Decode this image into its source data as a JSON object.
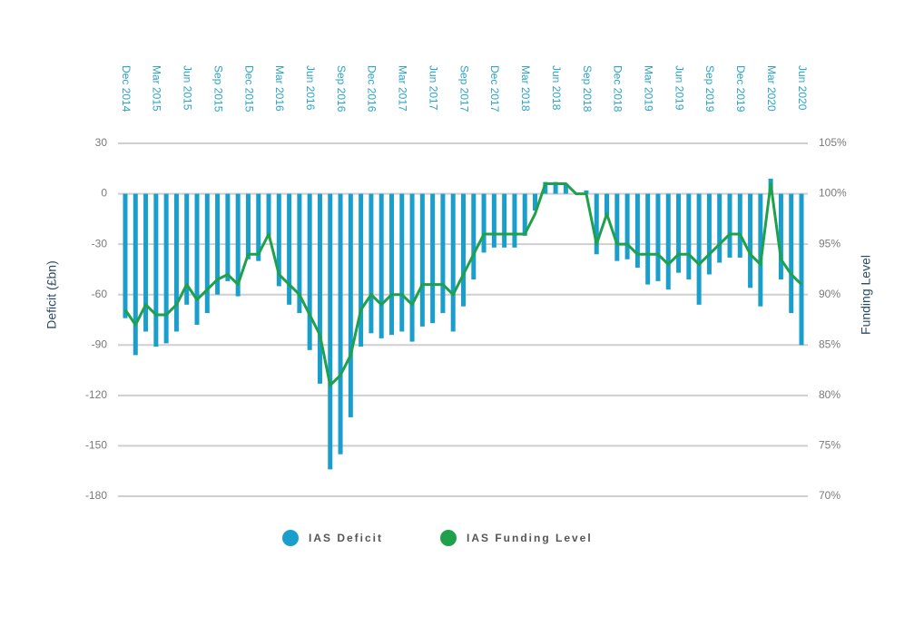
{
  "chart_data": {
    "type": "bar-line",
    "y_label": "Deficit (£bn)",
    "y2_label": "Funding Level",
    "categories": [
      "Dec 2014",
      null,
      null,
      "Mar 2015",
      null,
      null,
      "Jun 2015",
      null,
      null,
      "Sep 2015",
      null,
      null,
      "Dec 2015",
      null,
      null,
      "Mar 2016",
      null,
      null,
      "Jun 2016",
      null,
      null,
      "Sep 2016",
      null,
      null,
      "Dec 2016",
      null,
      null,
      "Mar 2017",
      null,
      null,
      "Jun 2017",
      null,
      null,
      "Sep 2017",
      null,
      null,
      "Dec 2017",
      null,
      null,
      "Mar 2018",
      null,
      null,
      "Jun 2018",
      null,
      null,
      "Sep 2018",
      null,
      null,
      "Dec 2018",
      null,
      null,
      "Mar 2019",
      null,
      null,
      "Jun 2019",
      null,
      null,
      "Sep 2019",
      null,
      null,
      "Dec 2019",
      null,
      null,
      "Mar 2020",
      null,
      null,
      "Jun 2020"
    ],
    "series": [
      {
        "name": "IAS Deficit",
        "color": "#1a9fcc",
        "type": "bar",
        "values": [
          -74,
          -96,
          -82,
          -91,
          -89,
          -82,
          -66,
          -78,
          -71,
          -60,
          -52,
          -61,
          -39,
          -40,
          -26,
          -55,
          -66,
          -71,
          -93,
          -113,
          -164,
          -155,
          -133,
          -91,
          -83,
          -86,
          -84,
          -82,
          -88,
          -79,
          -77,
          -71,
          -82,
          -67,
          -51,
          -35,
          -32,
          -32,
          -32,
          -25,
          -10,
          7,
          7,
          6,
          0,
          2,
          -36,
          -13,
          -40,
          -39,
          -44,
          -54,
          -52,
          -57,
          -47,
          -51,
          -66,
          -48,
          -41,
          -38,
          -38,
          -56,
          -67,
          9,
          -51,
          -71,
          -90
        ]
      },
      {
        "name": "IAS Funding Level",
        "color": "#1fa04a",
        "type": "line",
        "axis": "y2",
        "values": [
          88.5,
          87,
          89,
          88,
          88,
          89,
          91,
          89.5,
          90.5,
          91.5,
          92,
          91,
          94,
          94,
          96,
          92,
          91,
          90,
          88,
          86,
          81,
          82,
          84,
          88.5,
          90,
          89,
          90,
          90,
          89,
          91,
          91,
          91,
          90,
          92,
          94,
          96,
          96,
          96,
          96,
          96,
          98,
          101,
          101,
          101,
          100,
          100,
          95,
          98,
          95,
          95,
          94,
          94,
          94,
          93,
          94,
          94,
          93,
          94,
          95,
          96,
          96,
          94,
          93,
          101,
          93.5,
          92,
          91
        ]
      }
    ],
    "ylim": [
      -180,
      30
    ],
    "yticks": [
      30,
      0,
      -30,
      -60,
      -90,
      -120,
      -150,
      -180
    ],
    "y2lim": [
      70,
      105
    ],
    "y2ticks": [
      {
        "value": 105,
        "label": "105%"
      },
      {
        "value": 100,
        "label": "100%"
      },
      {
        "value": 95,
        "label": "95%"
      },
      {
        "value": 90,
        "label": "90%"
      },
      {
        "value": 85,
        "label": "85%"
      },
      {
        "value": 80,
        "label": "80%"
      },
      {
        "value": 75,
        "label": "75%"
      },
      {
        "value": 70,
        "label": "70%"
      }
    ],
    "grid": true
  }
}
